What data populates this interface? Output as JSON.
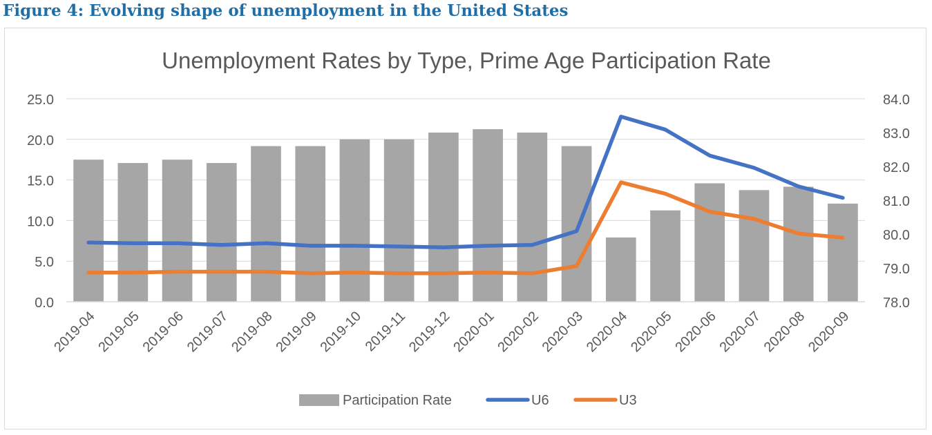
{
  "figure_heading": "Figure 4: Evolving shape of unemployment in the United States",
  "colors": {
    "heading": "#1f6ea8",
    "bars": "#a6a6a6",
    "u6": "#4472c4",
    "u3": "#ed7d31",
    "gridline": "#d9d9d9",
    "text": "#595959"
  },
  "chart_data": {
    "type": "bar+line",
    "title": "Unemployment Rates by Type, Prime Age Participation Rate",
    "categories": [
      "2019-04",
      "2019-05",
      "2019-06",
      "2019-07",
      "2019-08",
      "2019-09",
      "2019-10",
      "2019-11",
      "2019-12",
      "2020-01",
      "2020-02",
      "2020-03",
      "2020-04",
      "2020-05",
      "2020-06",
      "2020-07",
      "2020-08",
      "2020-09"
    ],
    "series": [
      {
        "name": "Participation Rate",
        "type": "bar",
        "axis": "right",
        "values": [
          82.2,
          82.1,
          82.2,
          82.1,
          82.6,
          82.6,
          82.8,
          82.8,
          83.0,
          83.1,
          83.0,
          82.6,
          79.9,
          80.7,
          81.5,
          81.3,
          81.4,
          80.9
        ]
      },
      {
        "name": "U6",
        "type": "line",
        "axis": "left",
        "values": [
          7.3,
          7.2,
          7.2,
          7.0,
          7.2,
          6.9,
          6.9,
          6.8,
          6.7,
          6.9,
          7.0,
          8.7,
          22.8,
          21.2,
          18.0,
          16.5,
          14.2,
          12.8
        ]
      },
      {
        "name": "U3",
        "type": "line",
        "axis": "left",
        "values": [
          3.6,
          3.6,
          3.7,
          3.7,
          3.7,
          3.5,
          3.6,
          3.5,
          3.5,
          3.6,
          3.5,
          4.4,
          14.7,
          13.3,
          11.1,
          10.2,
          8.4,
          7.9
        ]
      }
    ],
    "y_left": {
      "min": 0,
      "max": 25,
      "ticks": [
        "0.0",
        "5.0",
        "10.0",
        "15.0",
        "20.0",
        "25.0"
      ]
    },
    "y_right": {
      "min": 78,
      "max": 84,
      "ticks": [
        "78.0",
        "79.0",
        "80.0",
        "81.0",
        "82.0",
        "83.0",
        "84.0"
      ]
    },
    "grid": true,
    "legend_position": "bottom"
  }
}
